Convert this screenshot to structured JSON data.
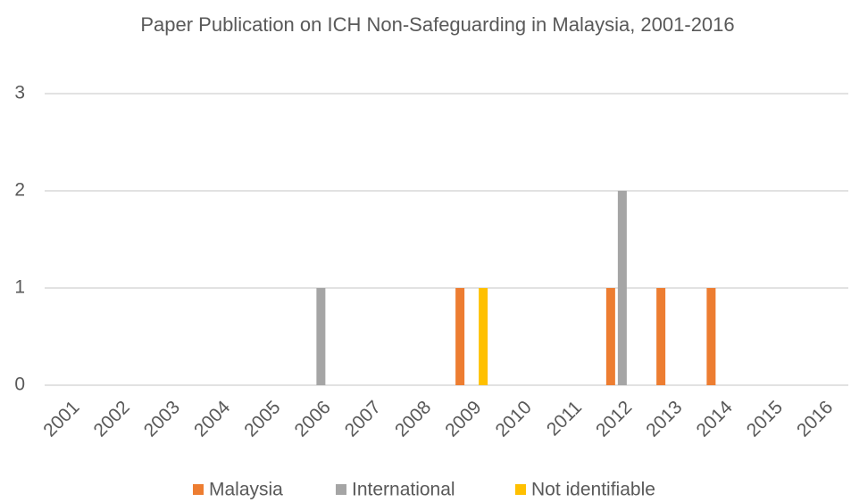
{
  "chart_data": {
    "type": "bar",
    "title": "Paper Publication on ICH Non-Safeguarding in Malaysia, 2001-2016",
    "categories": [
      "2001",
      "2002",
      "2003",
      "2004",
      "2005",
      "2006",
      "2007",
      "2008",
      "2009",
      "2010",
      "2011",
      "2012",
      "2013",
      "2014",
      "2015",
      "2016"
    ],
    "series": [
      {
        "name": "Malaysia",
        "color": "#ed7d31",
        "values": [
          0,
          0,
          0,
          0,
          0,
          0,
          0,
          0,
          1,
          0,
          0,
          1,
          1,
          1,
          0,
          0
        ]
      },
      {
        "name": "International",
        "color": "#a5a5a5",
        "values": [
          0,
          0,
          0,
          0,
          0,
          1,
          0,
          0,
          0,
          0,
          0,
          2,
          0,
          0,
          0,
          0
        ]
      },
      {
        "name": "Not identifiable",
        "color": "#ffc000",
        "values": [
          0,
          0,
          0,
          0,
          0,
          0,
          0,
          0,
          1,
          0,
          0,
          0,
          0,
          0,
          0,
          0
        ]
      }
    ],
    "ylim": [
      0,
      3
    ],
    "yticks": [
      0,
      1,
      2,
      3
    ],
    "grid": true,
    "legend": "bottom"
  }
}
